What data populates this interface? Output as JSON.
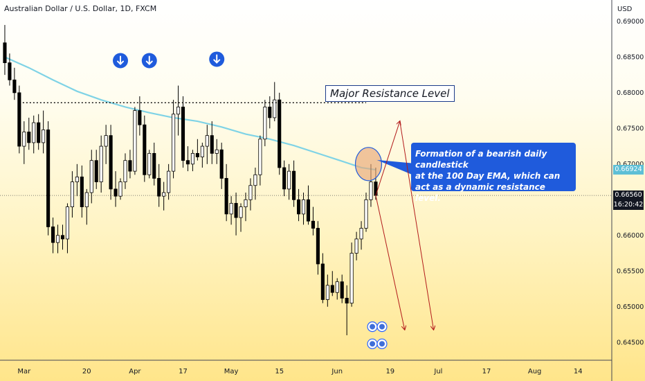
{
  "header": {
    "title": "Australian Dollar / U.S. Dollar, 1D, FXCM",
    "currency": "USD"
  },
  "annotations": {
    "resistance_label": "Major Resistance Level",
    "callout_lines": [
      "Formation of a bearish daily candlestick",
      "at the 100 Day EMA, which can",
      "act as a dynamic resistance level."
    ]
  },
  "price_labels": {
    "ema": "0.66924",
    "last": "0.66560",
    "countdown": "16:20:42"
  },
  "colors": {
    "bull": "#ffffff",
    "bear": "#000000",
    "ema": "#7fd3e6",
    "arrow": "#b21a1a",
    "badge": "#1f5bdc",
    "ema_box": "#5dbfd6",
    "last_box": "#131722"
  },
  "chart_data": {
    "type": "candlestick",
    "title": "Australian Dollar / U.S. Dollar, 1D, FXCM",
    "ylim": [
      0.6425,
      0.693
    ],
    "y_ticks": [
      0.645,
      0.65,
      0.655,
      0.66,
      0.665,
      0.67,
      0.675,
      0.68,
      0.685,
      0.69
    ],
    "y_tick_labels": [
      "0.64500",
      "0.65000",
      "0.65500",
      "0.66000",
      "0.66500",
      "0.67000",
      "0.67500",
      "0.68000",
      "0.68500",
      "0.69000"
    ],
    "x_tick_labels": [
      {
        "label": "Mar",
        "x": 4
      },
      {
        "label": "20",
        "x": 17
      },
      {
        "label": "Apr",
        "x": 27
      },
      {
        "label": "17",
        "x": 37
      },
      {
        "label": "May",
        "x": 47
      },
      {
        "label": "15",
        "x": 57
      },
      {
        "label": "Jun",
        "x": 69
      },
      {
        "label": "19",
        "x": 80
      },
      {
        "label": "Jul",
        "x": 90
      },
      {
        "label": "17",
        "x": 100
      },
      {
        "label": "Aug",
        "x": 110
      },
      {
        "label": "14",
        "x": 119
      }
    ],
    "x_range": [
      -1,
      126
    ],
    "candles": [
      {
        "o": 0.687,
        "h": 0.6895,
        "l": 0.6825,
        "c": 0.6842
      },
      {
        "o": 0.6842,
        "h": 0.6855,
        "l": 0.681,
        "c": 0.6818
      },
      {
        "o": 0.6818,
        "h": 0.6835,
        "l": 0.679,
        "c": 0.68
      },
      {
        "o": 0.68,
        "h": 0.681,
        "l": 0.6715,
        "c": 0.6725
      },
      {
        "o": 0.6725,
        "h": 0.676,
        "l": 0.67,
        "c": 0.6745
      },
      {
        "o": 0.6745,
        "h": 0.6765,
        "l": 0.672,
        "c": 0.673
      },
      {
        "o": 0.673,
        "h": 0.6768,
        "l": 0.6715,
        "c": 0.6758
      },
      {
        "o": 0.6758,
        "h": 0.677,
        "l": 0.672,
        "c": 0.673
      },
      {
        "o": 0.673,
        "h": 0.6775,
        "l": 0.6715,
        "c": 0.6748
      },
      {
        "o": 0.6748,
        "h": 0.676,
        "l": 0.66,
        "c": 0.6612
      },
      {
        "o": 0.6612,
        "h": 0.6625,
        "l": 0.6575,
        "c": 0.659
      },
      {
        "o": 0.659,
        "h": 0.6615,
        "l": 0.6575,
        "c": 0.66
      },
      {
        "o": 0.66,
        "h": 0.6615,
        "l": 0.658,
        "c": 0.6595
      },
      {
        "o": 0.6595,
        "h": 0.6645,
        "l": 0.6575,
        "c": 0.664
      },
      {
        "o": 0.664,
        "h": 0.669,
        "l": 0.6625,
        "c": 0.6675
      },
      {
        "o": 0.6675,
        "h": 0.67,
        "l": 0.6655,
        "c": 0.6682
      },
      {
        "o": 0.6682,
        "h": 0.6698,
        "l": 0.6625,
        "c": 0.664
      },
      {
        "o": 0.664,
        "h": 0.6665,
        "l": 0.6615,
        "c": 0.666
      },
      {
        "o": 0.666,
        "h": 0.672,
        "l": 0.6645,
        "c": 0.6705
      },
      {
        "o": 0.6705,
        "h": 0.672,
        "l": 0.6665,
        "c": 0.6675
      },
      {
        "o": 0.6675,
        "h": 0.674,
        "l": 0.666,
        "c": 0.6725
      },
      {
        "o": 0.6725,
        "h": 0.6755,
        "l": 0.67,
        "c": 0.674
      },
      {
        "o": 0.674,
        "h": 0.6755,
        "l": 0.665,
        "c": 0.6665
      },
      {
        "o": 0.6665,
        "h": 0.669,
        "l": 0.664,
        "c": 0.6655
      },
      {
        "o": 0.6655,
        "h": 0.668,
        "l": 0.665,
        "c": 0.6675
      },
      {
        "o": 0.6675,
        "h": 0.6715,
        "l": 0.6665,
        "c": 0.6705
      },
      {
        "o": 0.6705,
        "h": 0.672,
        "l": 0.668,
        "c": 0.669
      },
      {
        "o": 0.669,
        "h": 0.678,
        "l": 0.6685,
        "c": 0.6775
      },
      {
        "o": 0.6775,
        "h": 0.6795,
        "l": 0.674,
        "c": 0.6755
      },
      {
        "o": 0.6755,
        "h": 0.6768,
        "l": 0.6675,
        "c": 0.6685
      },
      {
        "o": 0.6685,
        "h": 0.672,
        "l": 0.668,
        "c": 0.6715
      },
      {
        "o": 0.6715,
        "h": 0.673,
        "l": 0.667,
        "c": 0.668
      },
      {
        "o": 0.668,
        "h": 0.67,
        "l": 0.664,
        "c": 0.6655
      },
      {
        "o": 0.6655,
        "h": 0.6675,
        "l": 0.6635,
        "c": 0.666
      },
      {
        "o": 0.666,
        "h": 0.67,
        "l": 0.665,
        "c": 0.669
      },
      {
        "o": 0.669,
        "h": 0.679,
        "l": 0.668,
        "c": 0.677
      },
      {
        "o": 0.677,
        "h": 0.681,
        "l": 0.674,
        "c": 0.678
      },
      {
        "o": 0.678,
        "h": 0.6795,
        "l": 0.6695,
        "c": 0.6705
      },
      {
        "o": 0.6705,
        "h": 0.6725,
        "l": 0.669,
        "c": 0.67
      },
      {
        "o": 0.67,
        "h": 0.672,
        "l": 0.669,
        "c": 0.6715
      },
      {
        "o": 0.6715,
        "h": 0.6735,
        "l": 0.6705,
        "c": 0.671
      },
      {
        "o": 0.671,
        "h": 0.673,
        "l": 0.6695,
        "c": 0.6725
      },
      {
        "o": 0.6725,
        "h": 0.6755,
        "l": 0.67,
        "c": 0.674
      },
      {
        "o": 0.674,
        "h": 0.676,
        "l": 0.67,
        "c": 0.6715
      },
      {
        "o": 0.6715,
        "h": 0.6735,
        "l": 0.67,
        "c": 0.672
      },
      {
        "o": 0.672,
        "h": 0.673,
        "l": 0.6665,
        "c": 0.668
      },
      {
        "o": 0.668,
        "h": 0.67,
        "l": 0.662,
        "c": 0.663
      },
      {
        "o": 0.663,
        "h": 0.6655,
        "l": 0.6615,
        "c": 0.6645
      },
      {
        "o": 0.6645,
        "h": 0.666,
        "l": 0.66,
        "c": 0.6625
      },
      {
        "o": 0.6625,
        "h": 0.6645,
        "l": 0.6605,
        "c": 0.664
      },
      {
        "o": 0.664,
        "h": 0.666,
        "l": 0.662,
        "c": 0.665
      },
      {
        "o": 0.665,
        "h": 0.668,
        "l": 0.6635,
        "c": 0.667
      },
      {
        "o": 0.667,
        "h": 0.6695,
        "l": 0.665,
        "c": 0.6685
      },
      {
        "o": 0.6685,
        "h": 0.674,
        "l": 0.667,
        "c": 0.6735
      },
      {
        "o": 0.6735,
        "h": 0.679,
        "l": 0.6725,
        "c": 0.678
      },
      {
        "o": 0.678,
        "h": 0.6795,
        "l": 0.675,
        "c": 0.6765
      },
      {
        "o": 0.6765,
        "h": 0.6815,
        "l": 0.676,
        "c": 0.679
      },
      {
        "o": 0.679,
        "h": 0.68,
        "l": 0.6685,
        "c": 0.6695
      },
      {
        "o": 0.6695,
        "h": 0.6705,
        "l": 0.6655,
        "c": 0.6665
      },
      {
        "o": 0.6665,
        "h": 0.67,
        "l": 0.665,
        "c": 0.669
      },
      {
        "o": 0.669,
        "h": 0.6705,
        "l": 0.664,
        "c": 0.665
      },
      {
        "o": 0.665,
        "h": 0.6665,
        "l": 0.662,
        "c": 0.663
      },
      {
        "o": 0.663,
        "h": 0.666,
        "l": 0.6615,
        "c": 0.665
      },
      {
        "o": 0.665,
        "h": 0.667,
        "l": 0.6615,
        "c": 0.662
      },
      {
        "o": 0.662,
        "h": 0.664,
        "l": 0.66,
        "c": 0.661
      },
      {
        "o": 0.661,
        "h": 0.662,
        "l": 0.6545,
        "c": 0.656
      },
      {
        "o": 0.656,
        "h": 0.6575,
        "l": 0.6505,
        "c": 0.651
      },
      {
        "o": 0.651,
        "h": 0.6545,
        "l": 0.65,
        "c": 0.653
      },
      {
        "o": 0.653,
        "h": 0.655,
        "l": 0.6515,
        "c": 0.652
      },
      {
        "o": 0.652,
        "h": 0.654,
        "l": 0.651,
        "c": 0.6535
      },
      {
        "o": 0.6535,
        "h": 0.6545,
        "l": 0.6505,
        "c": 0.6512
      },
      {
        "o": 0.6512,
        "h": 0.653,
        "l": 0.646,
        "c": 0.6505
      },
      {
        "o": 0.6505,
        "h": 0.659,
        "l": 0.65,
        "c": 0.6575
      },
      {
        "o": 0.6575,
        "h": 0.6605,
        "l": 0.6565,
        "c": 0.6595
      },
      {
        "o": 0.6595,
        "h": 0.662,
        "l": 0.658,
        "c": 0.661
      },
      {
        "o": 0.661,
        "h": 0.666,
        "l": 0.6605,
        "c": 0.665
      },
      {
        "o": 0.665,
        "h": 0.67,
        "l": 0.664,
        "c": 0.6675
      },
      {
        "o": 0.6675,
        "h": 0.6695,
        "l": 0.665,
        "c": 0.6656
      }
    ],
    "ema_100": [
      [
        0,
        0.685
      ],
      [
        5,
        0.6835
      ],
      [
        10,
        0.6818
      ],
      [
        15,
        0.6802
      ],
      [
        20,
        0.679
      ],
      [
        25,
        0.678
      ],
      [
        30,
        0.6772
      ],
      [
        35,
        0.6765
      ],
      [
        40,
        0.676
      ],
      [
        45,
        0.6752
      ],
      [
        50,
        0.6742
      ],
      [
        55,
        0.6735
      ],
      [
        60,
        0.6726
      ],
      [
        65,
        0.6715
      ],
      [
        70,
        0.6704
      ],
      [
        74,
        0.6695
      ],
      [
        77,
        0.6692
      ]
    ],
    "resistance_level": 0.6786,
    "resistance_x": [
      3,
      75
    ],
    "current_price_line": 0.6656,
    "markers_down": [
      {
        "x": 24,
        "y": 0.6845
      },
      {
        "x": 30,
        "y": 0.6845
      },
      {
        "x": 44,
        "y": 0.6847
      }
    ],
    "projection_arrows": [
      {
        "from": [
          77,
          0.6656
        ],
        "to": [
          82,
          0.676
        ]
      },
      {
        "from": [
          82,
          0.676
        ],
        "to": [
          89,
          0.6468
        ]
      },
      {
        "from": [
          77,
          0.6656
        ],
        "to": [
          83,
          0.6468
        ]
      }
    ],
    "ellipse_highlight": {
      "x": 75.5,
      "y": 0.67
    }
  }
}
